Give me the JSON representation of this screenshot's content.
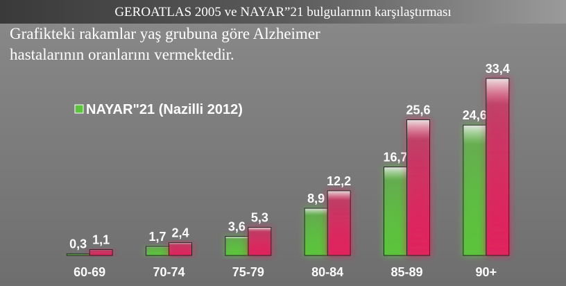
{
  "chart_data": {
    "type": "bar",
    "title": "GEROATLAS 2005 ve NAYAR”21 bulgularının karşılaştırması",
    "subtitle": [
      "Grafikteki rakamlar yaş grubuna göre Alzheimer",
      "hastalarının oranlarını vermektedir."
    ],
    "categories": [
      "60-69",
      "70-74",
      "75-79",
      "80-84",
      "85-89",
      "90+"
    ],
    "series": [
      {
        "name": "NAYAR\"21 (Nazilli 2012)",
        "color": "#5cc43c",
        "values": [
          0.3,
          1.7,
          3.6,
          8.9,
          16.7,
          24.6
        ],
        "value_labels": [
          "0,3",
          "1,7",
          "3,6",
          "8,9",
          "16,7",
          "24,6"
        ]
      },
      {
        "color": "#e0245e",
        "values": [
          1.1,
          2.4,
          5.3,
          12.2,
          25.6,
          33.4
        ],
        "value_labels": [
          "1,1",
          "2,4",
          "5,3",
          "12,2",
          "25,6",
          "33,4"
        ]
      }
    ]
  }
}
